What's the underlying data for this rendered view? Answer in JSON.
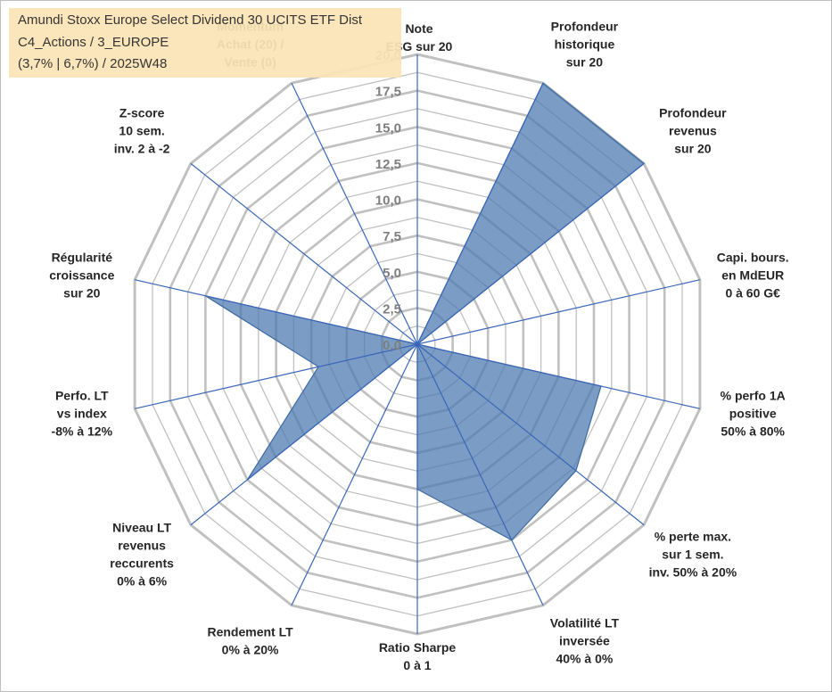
{
  "header": {
    "title_lines": [
      "Amundi Stoxx Europe Select Dividend 30 UCITS ETF Dist",
      "C4_Actions / 3_EUROPE",
      "(3,7% | 6,7%) / 2025W48"
    ]
  },
  "colors": {
    "fill": "#4f7bb0",
    "stroke": "#3d6aa3",
    "spoke": "#3a66b8",
    "grid": "#c0c0c0",
    "title_bg": "#fbe5b6"
  },
  "chart_data": {
    "type": "radar",
    "rlim": [
      0,
      20
    ],
    "grid": true,
    "ticks": [
      "0,0",
      "2,5",
      "5,0",
      "7,5",
      "10,0",
      "12,5",
      "15,0",
      "17,5",
      "20,0"
    ],
    "axes": [
      {
        "label": [
          "Note",
          "ESG sur 20"
        ],
        "value": 0
      },
      {
        "label": [
          "Profondeur",
          "historique",
          "sur 20"
        ],
        "value": 20
      },
      {
        "label": [
          "Profondeur",
          "revenus",
          "sur 20"
        ],
        "value": 20
      },
      {
        "label": [
          "Capi. bours.",
          "en MdEUR",
          "0 à 60 G€"
        ],
        "value": 0
      },
      {
        "label": [
          "% perfo 1A",
          "positive",
          "50% à 80%"
        ],
        "value": 13
      },
      {
        "label": [
          "% perte max.",
          "sur 1 sem.",
          "inv. 50% à 20%"
        ],
        "value": 14
      },
      {
        "label": [
          "Volatilité LT",
          "inversée",
          "40% à 0%"
        ],
        "value": 15
      },
      {
        "label": [
          "Ratio Sharpe",
          "0 à 1"
        ],
        "value": 10
      },
      {
        "label": [
          "Rendement LT",
          "0% à 20%"
        ],
        "value": 0
      },
      {
        "label": [
          "Niveau LT",
          "revenus",
          "reccurents",
          "0% à 6%"
        ],
        "value": 15
      },
      {
        "label": [
          "Perfo. LT",
          "vs index",
          "-8% à 12%"
        ],
        "value": 7
      },
      {
        "label": [
          "Régularité",
          "croissance",
          "sur 20"
        ],
        "value": 15
      },
      {
        "label": [
          "Z-score",
          "10 sem.",
          "inv. 2 à -2"
        ],
        "value": 0
      },
      {
        "label": [
          "Momentum",
          "Achat (20) /",
          "Vente (0)"
        ],
        "value": 0
      }
    ]
  }
}
